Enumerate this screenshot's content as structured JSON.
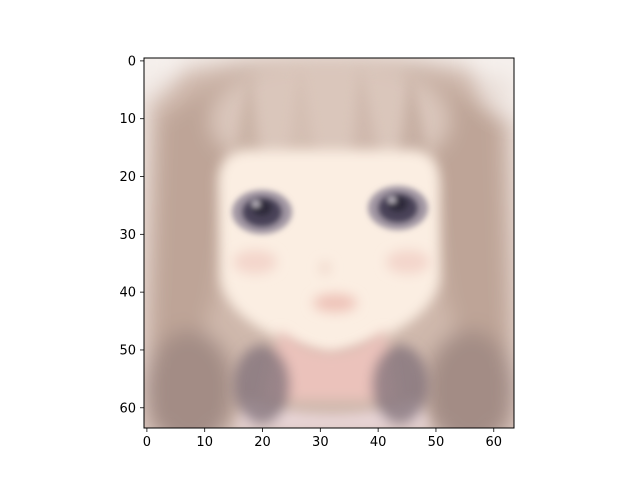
{
  "figure": {
    "background": "#ffffff"
  },
  "image": {
    "description_only_for_colors": false,
    "palette": {
      "hair_light": "#d8c2b6",
      "hair_mid": "#c4ab9e",
      "hair_dark": "#a8918a",
      "skin": "#fbefe2",
      "skin_shadow": "#f0d8cc",
      "eye_outer": "#7a6f80",
      "eye_iris": "#4a4358",
      "eye_pupil": "#2f2a3a",
      "blush": "#f2cfc6",
      "mouth": "#efc4ba",
      "neck_shadow": "#e2a9a4",
      "collar_dark": "#8d7e88",
      "bg_top": "#f7f2ef"
    }
  },
  "axes": {
    "x_ticks": [
      "0",
      "10",
      "20",
      "30",
      "40",
      "50",
      "60"
    ],
    "y_ticks": [
      "0",
      "10",
      "20",
      "30",
      "40",
      "50",
      "60"
    ],
    "x_tick_values": [
      0,
      10,
      20,
      30,
      40,
      50,
      60
    ],
    "y_tick_values": [
      0,
      10,
      20,
      30,
      40,
      50,
      60
    ],
    "xlim": [
      -0.5,
      63.5
    ],
    "ylim": [
      63.5,
      -0.5
    ],
    "grid": false
  }
}
